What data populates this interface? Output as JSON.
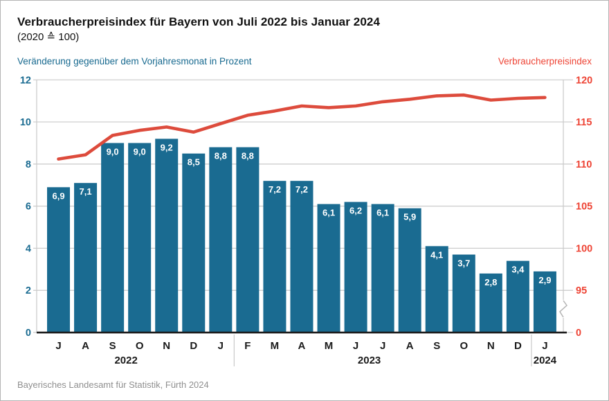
{
  "header": {
    "title": "Verbraucherpreisindex für Bayern von Juli 2022 bis Januar 2024",
    "subtitle": "(2020 ≙ 100)"
  },
  "axes": {
    "left_title": "Veränderung gegenüber dem Vorjahresmonat in Prozent",
    "right_title": "Verbraucherpreisindex"
  },
  "footer": {
    "source": "Bayerisches Landesamt für Statistik, Fürth 2024"
  },
  "colors": {
    "bar": "#1a6b91",
    "bar_label": "#ffffff",
    "line": "#dd4b3c",
    "left_tick_text": "#1a6b91",
    "right_tick_text": "#ee4435",
    "grid": "#c9c9c9",
    "axis_line": "#c9c9c9",
    "zero_axis": "#1a1a1a",
    "month_text": "#1a1a1a",
    "divider": "#c9c9c9"
  },
  "chart_data": {
    "type": "combo-bar-line",
    "categories": [
      "J",
      "A",
      "S",
      "O",
      "N",
      "D",
      "J",
      "F",
      "M",
      "A",
      "M",
      "J",
      "J",
      "A",
      "S",
      "O",
      "N",
      "D",
      "J"
    ],
    "year_groups": [
      {
        "label": "2022",
        "from": 0,
        "to": 5
      },
      {
        "label": "2023",
        "from": 6,
        "to": 17
      },
      {
        "label": "2024",
        "from": 18,
        "to": 18
      }
    ],
    "divider_boundaries": [
      7,
      18
    ],
    "bar_series": {
      "name": "Veränderung gegenüber dem Vorjahresmonat in Prozent",
      "values": [
        6.9,
        7.1,
        9.0,
        9.0,
        9.2,
        8.5,
        8.8,
        8.8,
        7.2,
        7.2,
        6.1,
        6.2,
        6.1,
        5.9,
        4.1,
        3.7,
        2.8,
        3.4,
        2.9
      ],
      "display_labels": [
        "6,9",
        "7,1",
        "9,0",
        "9,0",
        "9,2",
        "8,5",
        "8,8",
        "8,8",
        "7,2",
        "7,2",
        "6,1",
        "6,2",
        "6,1",
        "5,9",
        "4,1",
        "3,7",
        "2,8",
        "3,4",
        "2,9"
      ]
    },
    "line_series": {
      "name": "Verbraucherpreisindex",
      "values": [
        110.6,
        111.1,
        113.4,
        114.0,
        114.4,
        113.8,
        114.8,
        115.8,
        116.3,
        116.9,
        116.7,
        116.9,
        117.4,
        117.7,
        118.1,
        118.2,
        117.6,
        117.8,
        117.9
      ]
    },
    "left_axis": {
      "ticks": [
        0,
        2,
        4,
        6,
        8,
        10,
        12
      ],
      "range": [
        0,
        12
      ],
      "grid": true
    },
    "right_axis": {
      "ticks": [
        0,
        95,
        100,
        105,
        110,
        115,
        120
      ],
      "range_upper": [
        95,
        120
      ],
      "has_break": true
    }
  }
}
